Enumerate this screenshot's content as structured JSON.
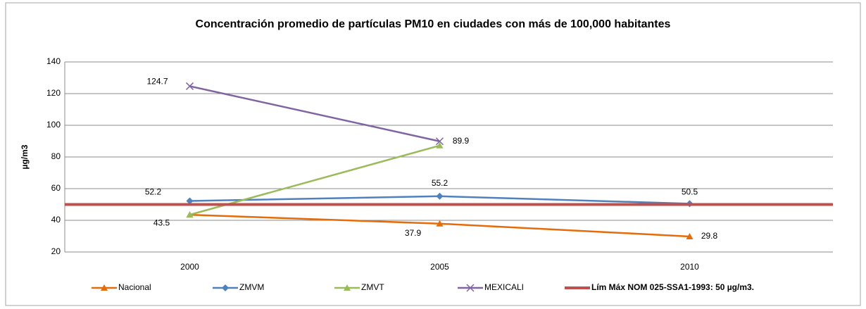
{
  "chart_data": {
    "type": "line",
    "title": "Concentración promedio de partículas PM10 en ciudades con más de 100,000 habitantes",
    "y_label": "µg/m3",
    "categories": [
      "2000",
      "2005",
      "2010"
    ],
    "series": [
      {
        "name": "Nacional",
        "color": "#e46c0a",
        "marker": "triangle",
        "values": [
          43.5,
          37.9,
          29.8
        ]
      },
      {
        "name": "ZMVM",
        "color": "#4f81bd",
        "marker": "diamond",
        "values": [
          52.2,
          55.2,
          50.5
        ]
      },
      {
        "name": "ZMVT",
        "color": "#9bbb59",
        "marker": "triangle",
        "values": [
          43.5,
          87.2,
          null
        ]
      },
      {
        "name": "MEXICALI",
        "color": "#8064a2",
        "marker": "x",
        "values": [
          124.7,
          89.9,
          null
        ]
      },
      {
        "name": "Lím Máx NOM 025-SSA1-1993: 50 µg/m3.",
        "color": "#c0504d",
        "marker": "none",
        "values": [
          50,
          50,
          50
        ]
      }
    ],
    "ylim": [
      20,
      140
    ],
    "yticks": [
      20,
      40,
      60,
      80,
      100,
      120,
      140
    ],
    "grid": true,
    "legend": "bottom"
  }
}
